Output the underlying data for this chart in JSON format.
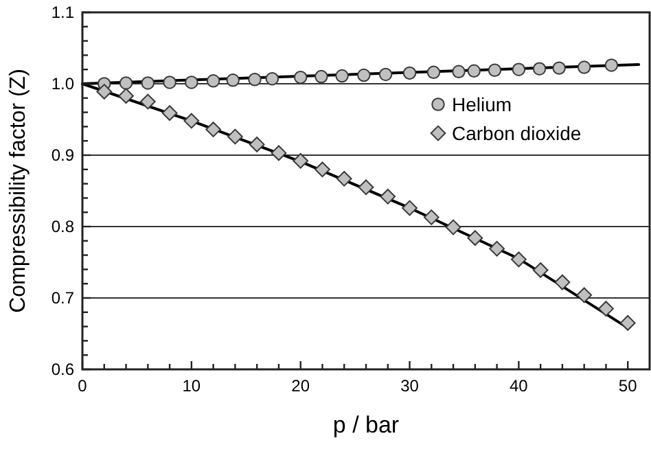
{
  "chart_data": {
    "type": "scatter",
    "xlabel": "p / bar",
    "ylabel": "Compressibility factor (Z)",
    "xlim": [
      0,
      52
    ],
    "ylim": [
      0.6,
      1.1
    ],
    "xticks": [
      0,
      {
        "value": 2,
        "label": null
      },
      {
        "value": 4,
        "label": null
      },
      {
        "value": 6,
        "label": null
      },
      {
        "value": 8,
        "label": null
      },
      10,
      {
        "value": 12,
        "label": null
      },
      {
        "value": 14,
        "label": null
      },
      {
        "value": 16,
        "label": null
      },
      {
        "value": 18,
        "label": null
      },
      20,
      {
        "value": 22,
        "label": null
      },
      {
        "value": 24,
        "label": null
      },
      {
        "value": 26,
        "label": null
      },
      {
        "value": 28,
        "label": null
      },
      30,
      {
        "value": 32,
        "label": null
      },
      {
        "value": 34,
        "label": null
      },
      {
        "value": 36,
        "label": null
      },
      {
        "value": 38,
        "label": null
      },
      40,
      {
        "value": 42,
        "label": null
      },
      {
        "value": 44,
        "label": null
      },
      {
        "value": 46,
        "label": null
      },
      {
        "value": 48,
        "label": null
      },
      50
    ],
    "yticks": [
      0.6,
      {
        "value": 0.62,
        "label": null
      },
      {
        "value": 0.64,
        "label": null
      },
      {
        "value": 0.66,
        "label": null
      },
      {
        "value": 0.68,
        "label": null
      },
      0.7,
      {
        "value": 0.72,
        "label": null
      },
      {
        "value": 0.74,
        "label": null
      },
      {
        "value": 0.76,
        "label": null
      },
      {
        "value": 0.78,
        "label": null
      },
      0.8,
      {
        "value": 0.82,
        "label": null
      },
      {
        "value": 0.84,
        "label": null
      },
      {
        "value": 0.86,
        "label": null
      },
      {
        "value": 0.88,
        "label": null
      },
      0.9,
      {
        "value": 0.92,
        "label": null
      },
      {
        "value": 0.94,
        "label": null
      },
      {
        "value": 0.96,
        "label": null
      },
      {
        "value": 0.98,
        "label": null
      },
      {
        "value": 1,
        "label": "1.0"
      },
      {
        "value": 1.02,
        "label": null
      },
      {
        "value": 1.04,
        "label": null
      },
      {
        "value": 1.06,
        "label": null
      },
      {
        "value": 1.08,
        "label": null
      },
      1.1
    ],
    "grid": "y",
    "legend": "top right",
    "series": [
      {
        "type": "line",
        "color": "#000000",
        "marker": "none",
        "x": [
          0,
          51
        ],
        "values": [
          1.0,
          1.027
        ]
      },
      {
        "type": "line",
        "color": "#000000",
        "marker": "none",
        "x": [
          0,
          10,
          20,
          30,
          40,
          50
        ],
        "values": [
          1.0,
          0.948,
          0.891,
          0.826,
          0.755,
          0.658
        ]
      },
      {
        "name": "Helium",
        "marker": "circle",
        "color": "#c0c0c0",
        "x": [
          2,
          4,
          6,
          8,
          10,
          12,
          13.8,
          15.8,
          17.4,
          20,
          21.9,
          23.8,
          25.8,
          27.8,
          30,
          32.2,
          34.5,
          35.9,
          37.8,
          40,
          41.9,
          43.7,
          46,
          48.5
        ],
        "values": [
          1.0,
          1.001,
          1.001,
          1.002,
          1.002,
          1.004,
          1.005,
          1.006,
          1.007,
          1.009,
          1.01,
          1.011,
          1.012,
          1.013,
          1.015,
          1.016,
          1.017,
          1.018,
          1.019,
          1.02,
          1.021,
          1.022,
          1.023,
          1.026
        ]
      },
      {
        "name": "Carbon dioxide",
        "marker": "diamond",
        "color": "#c0c0c0",
        "x": [
          2,
          4,
          6,
          8,
          10,
          12,
          14,
          16,
          18,
          20,
          22,
          24,
          26,
          28,
          30,
          32,
          34,
          36,
          38,
          40,
          42,
          44,
          46,
          48,
          50
        ],
        "values": [
          0.989,
          0.983,
          0.975,
          0.959,
          0.948,
          0.936,
          0.926,
          0.915,
          0.903,
          0.892,
          0.88,
          0.867,
          0.855,
          0.842,
          0.826,
          0.813,
          0.799,
          0.784,
          0.769,
          0.754,
          0.739,
          0.722,
          0.704,
          0.685,
          0.665
        ]
      }
    ]
  }
}
